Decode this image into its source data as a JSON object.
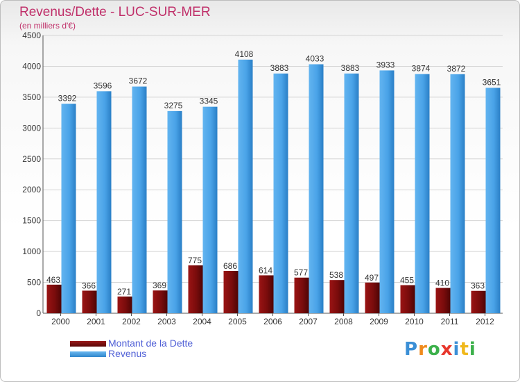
{
  "chart_data": {
    "type": "bar",
    "title": "Revenus/Dette - LUC-SUR-MER",
    "subtitle": "(en milliers d'€)",
    "categories": [
      "2000",
      "2001",
      "2002",
      "2003",
      "2004",
      "2005",
      "2006",
      "2007",
      "2008",
      "2009",
      "2010",
      "2011",
      "2012"
    ],
    "series": [
      {
        "name": "Montant de la Dette",
        "color": "#7a0f0f",
        "values": [
          463,
          366,
          271,
          369,
          775,
          686,
          614,
          577,
          538,
          497,
          455,
          410,
          363
        ]
      },
      {
        "name": "Revenus",
        "color": "#4aa3e8",
        "values": [
          3392,
          3596,
          3672,
          3275,
          3345,
          4108,
          3883,
          4033,
          3883,
          3933,
          3874,
          3872,
          3651
        ]
      }
    ],
    "ylim": [
      0,
      4500
    ],
    "yticks": [
      0,
      500,
      1000,
      1500,
      2000,
      2500,
      3000,
      3500,
      4000,
      4500
    ],
    "grid": true,
    "legend_position": "bottom-left"
  },
  "logo": {
    "letters": [
      "P",
      "r",
      "o",
      "x",
      "i",
      "t",
      "i"
    ],
    "colors": [
      "#3b8fd6",
      "#f08a1c",
      "#3bb04a",
      "#e8362c",
      "#3b8fd6",
      "#f0b81c",
      "#3bb04a"
    ]
  }
}
